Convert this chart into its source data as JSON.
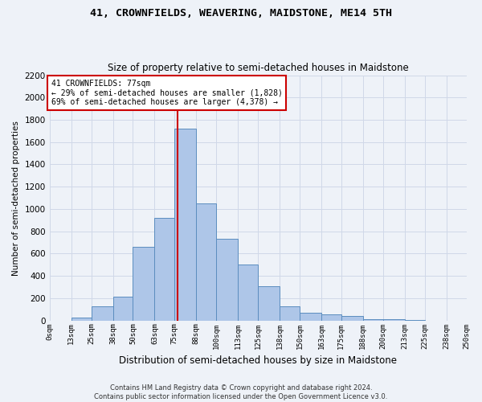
{
  "title": "41, CROWNFIELDS, WEAVERING, MAIDSTONE, ME14 5TH",
  "subtitle": "Size of property relative to semi-detached houses in Maidstone",
  "xlabel": "Distribution of semi-detached houses by size in Maidstone",
  "ylabel": "Number of semi-detached properties",
  "footnote1": "Contains HM Land Registry data © Crown copyright and database right 2024.",
  "footnote2": "Contains public sector information licensed under the Open Government Licence v3.0.",
  "annotation_line1": "41 CROWNFIELDS: 77sqm",
  "annotation_line2": "← 29% of semi-detached houses are smaller (1,828)",
  "annotation_line3": "69% of semi-detached houses are larger (4,378) →",
  "property_sqm": 77,
  "bar_edges": [
    0,
    13,
    25,
    38,
    50,
    63,
    75,
    88,
    100,
    113,
    125,
    138,
    150,
    163,
    175,
    188,
    200,
    213,
    225,
    238,
    250
  ],
  "bar_values": [
    0,
    25,
    130,
    215,
    660,
    920,
    1720,
    1050,
    730,
    500,
    305,
    125,
    70,
    55,
    40,
    15,
    10,
    5,
    0,
    0
  ],
  "tick_labels": [
    "0sqm",
    "13sqm",
    "25sqm",
    "38sqm",
    "50sqm",
    "63sqm",
    "75sqm",
    "88sqm",
    "100sqm",
    "113sqm",
    "125sqm",
    "138sqm",
    "150sqm",
    "163sqm",
    "175sqm",
    "188sqm",
    "200sqm",
    "213sqm",
    "225sqm",
    "238sqm",
    "250sqm"
  ],
  "bar_color": "#aec6e8",
  "bar_edge_color": "#5b8dbf",
  "vline_color": "#cc0000",
  "annotation_box_color": "#cc0000",
  "grid_color": "#d0d8e8",
  "bg_color": "#eef2f8",
  "ylim": [
    0,
    2200
  ],
  "yticks": [
    0,
    200,
    400,
    600,
    800,
    1000,
    1200,
    1400,
    1600,
    1800,
    2000,
    2200
  ]
}
